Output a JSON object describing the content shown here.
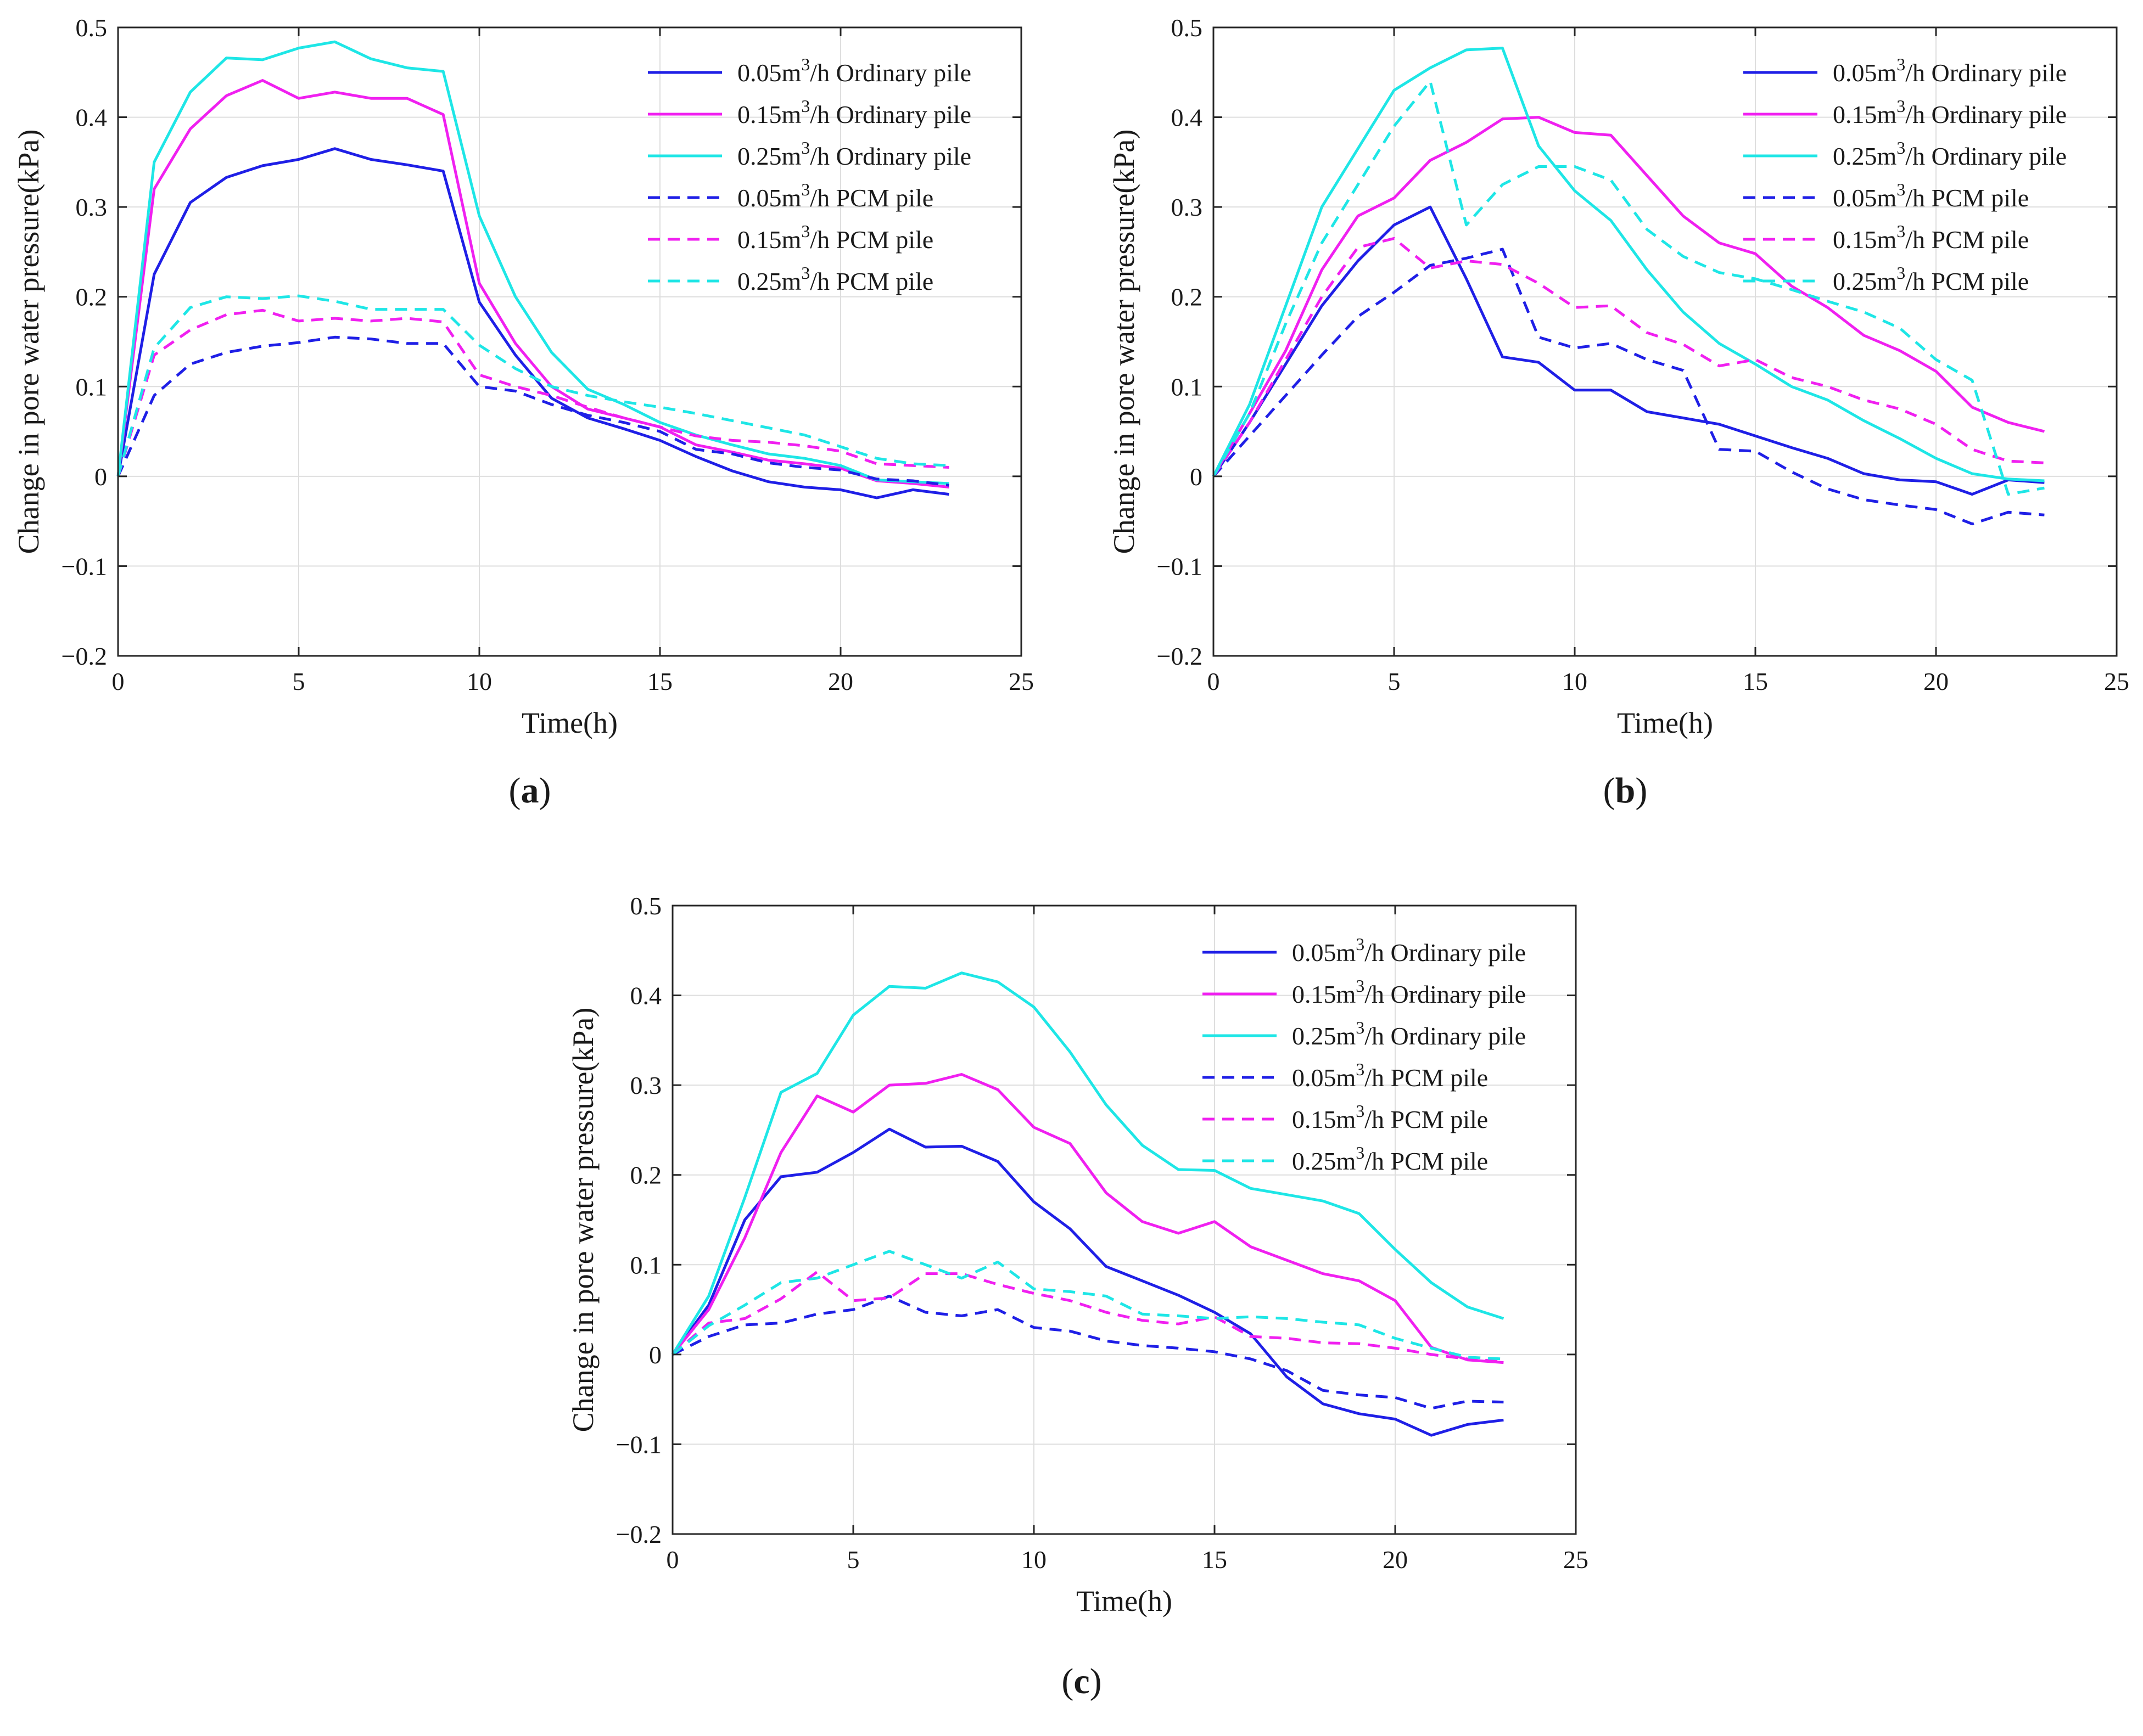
{
  "figure": {
    "captions": [
      "a",
      "b",
      "c"
    ]
  },
  "chart_data": [
    {
      "id": "a",
      "type": "line",
      "caption": "a",
      "title": "",
      "xlabel": "Time(h)",
      "ylabel": "Change in pore water pressure(kPa)",
      "xlim": [
        0,
        25
      ],
      "ylim": [
        -0.2,
        0.5
      ],
      "xticks": [
        0,
        5,
        10,
        15,
        20,
        25
      ],
      "yticks": [
        -0.2,
        -0.1,
        0,
        0.1,
        0.2,
        0.3,
        0.4,
        0.5
      ],
      "ytick_labels": [
        "−0.2",
        "−0.1",
        "0",
        "0.1",
        "0.2",
        "0.3",
        "0.4",
        "0.5"
      ],
      "grid": true,
      "legend_position": "top-right",
      "x": [
        0,
        1,
        2,
        3,
        4,
        5,
        6,
        7,
        8,
        9,
        10,
        11,
        12,
        13,
        14,
        15,
        16,
        17,
        18,
        19,
        20,
        21,
        22,
        23
      ],
      "series": [
        {
          "name": "0.05m3/h Ordinary pile",
          "label_base": "0.05m",
          "label_sup": "3",
          "label_rest": "/h Ordinary pile",
          "color": "#1f1fe6",
          "dash": false,
          "values": [
            0,
            0.225,
            0.305,
            0.333,
            0.346,
            0.353,
            0.365,
            0.353,
            0.347,
            0.34,
            0.194,
            0.135,
            0.087,
            0.065,
            0.053,
            0.04,
            0.022,
            0.006,
            -0.006,
            -0.012,
            -0.015,
            -0.024,
            -0.015,
            -0.02
          ]
        },
        {
          "name": "0.15m3/h Ordinary pile",
          "label_base": "0.15m",
          "label_sup": "3",
          "label_rest": "/h Ordinary pile",
          "color": "#f020f0",
          "dash": false,
          "values": [
            0,
            0.32,
            0.387,
            0.424,
            0.441,
            0.421,
            0.428,
            0.421,
            0.421,
            0.403,
            0.215,
            0.148,
            0.1,
            0.075,
            0.065,
            0.055,
            0.035,
            0.027,
            0.018,
            0.014,
            0.009,
            -0.005,
            -0.008,
            -0.012
          ]
        },
        {
          "name": "0.25m3/h Ordinary pile",
          "label_base": "0.25m",
          "label_sup": "3",
          "label_rest": "/h Ordinary pile",
          "color": "#1ee6e6",
          "dash": false,
          "values": [
            0,
            0.35,
            0.428,
            0.466,
            0.464,
            0.477,
            0.484,
            0.465,
            0.455,
            0.451,
            0.29,
            0.2,
            0.138,
            0.097,
            0.08,
            0.06,
            0.046,
            0.035,
            0.025,
            0.02,
            0.012,
            -0.004,
            -0.006,
            -0.008
          ]
        },
        {
          "name": "0.05m3/h PCM pile",
          "label_base": "0.05m",
          "label_sup": "3",
          "label_rest": "/h PCM pile",
          "color": "#1f1fe6",
          "dash": true,
          "values": [
            0,
            0.09,
            0.125,
            0.138,
            0.145,
            0.149,
            0.155,
            0.153,
            0.148,
            0.148,
            0.1,
            0.095,
            0.08,
            0.068,
            0.06,
            0.05,
            0.03,
            0.025,
            0.015,
            0.01,
            0.007,
            -0.003,
            -0.005,
            -0.01
          ]
        },
        {
          "name": "0.15m3/h PCM pile",
          "label_base": "0.15m",
          "label_sup": "3",
          "label_rest": "/h PCM pile",
          "color": "#f020f0",
          "dash": true,
          "values": [
            0,
            0.135,
            0.163,
            0.18,
            0.185,
            0.173,
            0.176,
            0.173,
            0.176,
            0.172,
            0.113,
            0.1,
            0.09,
            0.077,
            0.065,
            0.055,
            0.045,
            0.04,
            0.038,
            0.034,
            0.028,
            0.014,
            0.012,
            0.01
          ]
        },
        {
          "name": "0.25m3/h PCM pile",
          "label_base": "0.25m",
          "label_sup": "3",
          "label_rest": "/h PCM pile",
          "color": "#1ee6e6",
          "dash": true,
          "values": [
            0,
            0.143,
            0.188,
            0.2,
            0.198,
            0.201,
            0.195,
            0.186,
            0.186,
            0.186,
            0.146,
            0.12,
            0.1,
            0.09,
            0.083,
            0.077,
            0.07,
            0.062,
            0.054,
            0.046,
            0.033,
            0.02,
            0.014,
            0.012
          ]
        }
      ]
    },
    {
      "id": "b",
      "type": "line",
      "caption": "b",
      "title": "",
      "xlabel": "Time(h)",
      "ylabel": "Change in pore water pressure(kPa)",
      "xlim": [
        0,
        25
      ],
      "ylim": [
        -0.2,
        0.5
      ],
      "xticks": [
        0,
        5,
        10,
        15,
        20,
        25
      ],
      "yticks": [
        -0.2,
        -0.1,
        0,
        0.1,
        0.2,
        0.3,
        0.4,
        0.5
      ],
      "ytick_labels": [
        "−0.2",
        "−0.1",
        "0",
        "0.1",
        "0.2",
        "0.3",
        "0.4",
        "0.5"
      ],
      "grid": true,
      "legend_position": "top-right",
      "x": [
        0,
        1,
        2,
        3,
        4,
        5,
        6,
        7,
        8,
        9,
        10,
        11,
        12,
        13,
        14,
        15,
        16,
        17,
        18,
        19,
        20,
        21,
        22,
        23
      ],
      "series": [
        {
          "name": "0.05m3/h Ordinary pile",
          "label_base": "0.05m",
          "label_sup": "3",
          "label_rest": "/h Ordinary pile",
          "color": "#1f1fe6",
          "dash": false,
          "values": [
            0,
            0.06,
            0.125,
            0.19,
            0.24,
            0.28,
            0.3,
            0.22,
            0.133,
            0.127,
            0.096,
            0.096,
            0.072,
            0.065,
            0.058,
            0.045,
            0.032,
            0.02,
            0.003,
            -0.004,
            -0.006,
            -0.02,
            -0.004,
            -0.007
          ]
        },
        {
          "name": "0.15m3/h Ordinary pile",
          "label_base": "0.15m",
          "label_sup": "3",
          "label_rest": "/h Ordinary pile",
          "color": "#f020f0",
          "dash": false,
          "values": [
            0,
            0.07,
            0.14,
            0.23,
            0.29,
            0.31,
            0.352,
            0.372,
            0.398,
            0.4,
            0.383,
            0.38,
            0.335,
            0.29,
            0.26,
            0.248,
            0.212,
            0.188,
            0.157,
            0.14,
            0.117,
            0.077,
            0.06,
            0.05
          ]
        },
        {
          "name": "0.25m3/h Ordinary pile",
          "label_base": "0.25m",
          "label_sup": "3",
          "label_rest": "/h Ordinary pile",
          "color": "#1ee6e6",
          "dash": false,
          "values": [
            0,
            0.08,
            0.19,
            0.3,
            0.365,
            0.43,
            0.455,
            0.475,
            0.477,
            0.368,
            0.318,
            0.285,
            0.23,
            0.183,
            0.148,
            0.125,
            0.1,
            0.085,
            0.062,
            0.042,
            0.02,
            0.003,
            -0.003,
            -0.005
          ]
        },
        {
          "name": "0.05m3/h PCM pile",
          "label_base": "0.05m",
          "label_sup": "3",
          "label_rest": "/h PCM pile",
          "color": "#1f1fe6",
          "dash": true,
          "values": [
            0,
            0.045,
            0.09,
            0.135,
            0.178,
            0.205,
            0.235,
            0.243,
            0.253,
            0.155,
            0.143,
            0.148,
            0.13,
            0.118,
            0.03,
            0.028,
            0.005,
            -0.014,
            -0.026,
            -0.032,
            -0.037,
            -0.053,
            -0.04,
            -0.043
          ]
        },
        {
          "name": "0.15m3/h PCM pile",
          "label_base": "0.15m",
          "label_sup": "3",
          "label_rest": "/h PCM pile",
          "color": "#f020f0",
          "dash": true,
          "values": [
            0,
            0.06,
            0.13,
            0.2,
            0.255,
            0.265,
            0.232,
            0.24,
            0.236,
            0.215,
            0.188,
            0.19,
            0.16,
            0.147,
            0.123,
            0.13,
            0.11,
            0.1,
            0.085,
            0.075,
            0.058,
            0.03,
            0.017,
            0.015
          ]
        },
        {
          "name": "0.25m3/h PCM pile",
          "label_base": "0.25m",
          "label_sup": "3",
          "label_rest": "/h PCM pile",
          "color": "#1ee6e6",
          "dash": true,
          "values": [
            0,
            0.07,
            0.17,
            0.26,
            0.325,
            0.39,
            0.44,
            0.28,
            0.325,
            0.345,
            0.345,
            0.33,
            0.275,
            0.245,
            0.227,
            0.22,
            0.208,
            0.195,
            0.183,
            0.165,
            0.13,
            0.107,
            -0.02,
            -0.013
          ]
        }
      ]
    },
    {
      "id": "c",
      "type": "line",
      "caption": "c",
      "title": "",
      "xlabel": "Time(h)",
      "ylabel": "Change in pore water pressure(kPa)",
      "xlim": [
        0,
        25
      ],
      "ylim": [
        -0.2,
        0.5
      ],
      "xticks": [
        0,
        5,
        10,
        15,
        20,
        25
      ],
      "yticks": [
        -0.2,
        -0.1,
        0,
        0.1,
        0.2,
        0.3,
        0.4,
        0.5
      ],
      "ytick_labels": [
        "−0.2",
        "−0.1",
        "0",
        "0.1",
        "0.2",
        "0.3",
        "0.4",
        "0.5"
      ],
      "grid": true,
      "legend_position": "top-right",
      "x": [
        0,
        1,
        2,
        3,
        4,
        5,
        6,
        7,
        8,
        9,
        10,
        11,
        12,
        13,
        14,
        15,
        16,
        17,
        18,
        19,
        20,
        21,
        22,
        23
      ],
      "series": [
        {
          "name": "0.05m3/h Ordinary pile",
          "label_base": "0.05m",
          "label_sup": "3",
          "label_rest": "/h Ordinary pile",
          "color": "#1f1fe6",
          "dash": false,
          "values": [
            0,
            0.055,
            0.15,
            0.198,
            0.203,
            0.225,
            0.251,
            0.231,
            0.232,
            0.215,
            0.17,
            0.14,
            0.098,
            0.082,
            0.066,
            0.047,
            0.023,
            -0.025,
            -0.055,
            -0.066,
            -0.072,
            -0.09,
            -0.078,
            -0.073
          ]
        },
        {
          "name": "0.15m3/h Ordinary pile",
          "label_base": "0.15m",
          "label_sup": "3",
          "label_rest": "/h Ordinary pile",
          "color": "#f020f0",
          "dash": false,
          "values": [
            0,
            0.05,
            0.13,
            0.225,
            0.288,
            0.27,
            0.3,
            0.302,
            0.312,
            0.295,
            0.253,
            0.235,
            0.18,
            0.148,
            0.135,
            0.148,
            0.12,
            0.105,
            0.09,
            0.082,
            0.06,
            0.008,
            -0.006,
            -0.009
          ]
        },
        {
          "name": "0.25m3/h Ordinary pile",
          "label_base": "0.25m",
          "label_sup": "3",
          "label_rest": "/h Ordinary pile",
          "color": "#1ee6e6",
          "dash": false,
          "values": [
            0,
            0.065,
            0.175,
            0.292,
            0.313,
            0.378,
            0.41,
            0.408,
            0.425,
            0.415,
            0.387,
            0.337,
            0.278,
            0.233,
            0.206,
            0.205,
            0.185,
            0.178,
            0.171,
            0.157,
            0.117,
            0.08,
            0.053,
            0.04
          ]
        },
        {
          "name": "0.05m3/h PCM pile",
          "label_base": "0.05m",
          "label_sup": "3",
          "label_rest": "/h PCM pile",
          "color": "#1f1fe6",
          "dash": true,
          "values": [
            0,
            0.02,
            0.033,
            0.035,
            0.045,
            0.05,
            0.065,
            0.047,
            0.043,
            0.05,
            0.03,
            0.026,
            0.015,
            0.01,
            0.007,
            0.003,
            -0.005,
            -0.018,
            -0.04,
            -0.045,
            -0.048,
            -0.06,
            -0.052,
            -0.053
          ]
        },
        {
          "name": "0.15m3/h PCM pile",
          "label_base": "0.15m",
          "label_sup": "3",
          "label_rest": "/h PCM pile",
          "color": "#f020f0",
          "dash": true,
          "values": [
            0,
            0.035,
            0.04,
            0.062,
            0.092,
            0.06,
            0.063,
            0.09,
            0.09,
            0.078,
            0.068,
            0.06,
            0.047,
            0.038,
            0.034,
            0.042,
            0.02,
            0.018,
            0.013,
            0.012,
            0.007,
            0.0,
            -0.005,
            -0.008
          ]
        },
        {
          "name": "0.25m3/h PCM pile",
          "label_base": "0.25m",
          "label_sup": "3",
          "label_rest": "/h PCM pile",
          "color": "#1ee6e6",
          "dash": true,
          "values": [
            0,
            0.032,
            0.055,
            0.08,
            0.085,
            0.1,
            0.115,
            0.1,
            0.085,
            0.103,
            0.073,
            0.07,
            0.065,
            0.045,
            0.043,
            0.04,
            0.042,
            0.04,
            0.036,
            0.033,
            0.018,
            0.007,
            -0.003,
            -0.005
          ]
        }
      ]
    }
  ]
}
